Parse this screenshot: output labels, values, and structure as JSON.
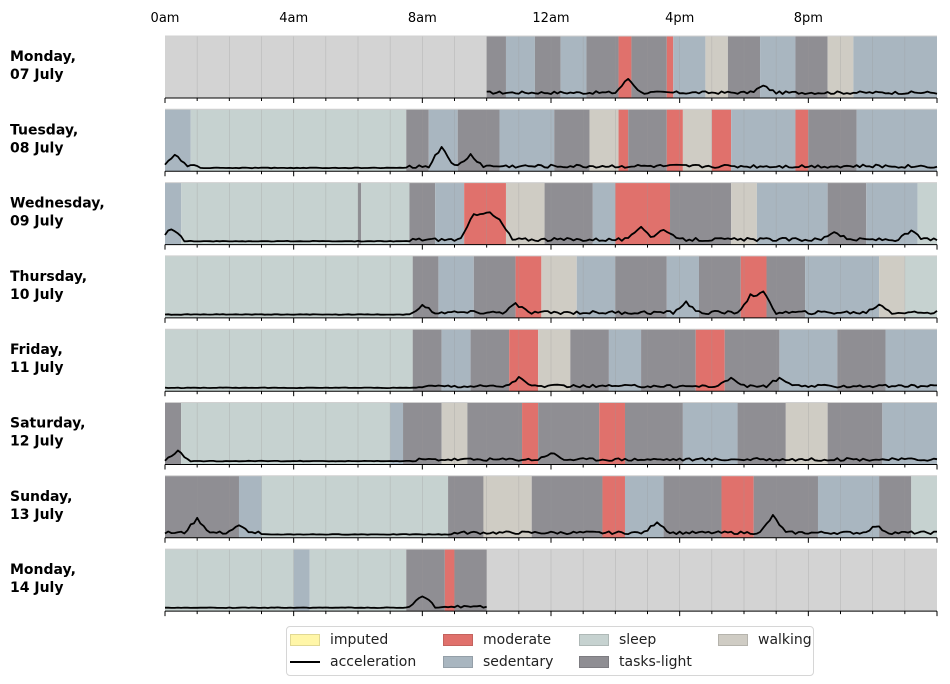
{
  "chart_data": {
    "type": "area",
    "x_ticks": [
      "0am",
      "4am",
      "8am",
      "12am",
      "4pm",
      "8pm"
    ],
    "x_tick_hours": [
      0,
      4,
      8,
      12,
      16,
      20
    ],
    "xlim_hours": [
      0,
      24
    ],
    "colors": {
      "imputed": "#fff6a8",
      "moderate": "#e0716c",
      "sedentary": "#a9b6c0",
      "sleep": "#c6d2d0",
      "tasks-light": "#8f8e93",
      "walking": "#cfccc4",
      "nodata": "#d3d3d3"
    },
    "legend": [
      {
        "key": "imputed",
        "label": "imputed",
        "kind": "patch"
      },
      {
        "key": "acceleration",
        "label": "acceleration",
        "kind": "line"
      },
      {
        "key": "moderate",
        "label": "moderate",
        "kind": "patch"
      },
      {
        "key": "sedentary",
        "label": "sedentary",
        "kind": "patch"
      },
      {
        "key": "sleep",
        "label": "sleep",
        "kind": "patch"
      },
      {
        "key": "tasks-light",
        "label": "tasks-light",
        "kind": "patch"
      },
      {
        "key": "walking",
        "label": "walking",
        "kind": "patch"
      }
    ],
    "days": [
      {
        "line1": "Monday,",
        "line2": "07 July",
        "segments": [
          {
            "s": 0,
            "e": 10,
            "c": "nodata"
          },
          {
            "s": 10,
            "e": 10.6,
            "c": "tasks-light"
          },
          {
            "s": 10.6,
            "e": 11.5,
            "c": "sedentary"
          },
          {
            "s": 11.5,
            "e": 12.3,
            "c": "tasks-light"
          },
          {
            "s": 12.3,
            "e": 13.1,
            "c": "sedentary"
          },
          {
            "s": 13.1,
            "e": 14.1,
            "c": "tasks-light"
          },
          {
            "s": 14.1,
            "e": 14.5,
            "c": "moderate"
          },
          {
            "s": 14.5,
            "e": 15.6,
            "c": "tasks-light"
          },
          {
            "s": 15.6,
            "e": 15.8,
            "c": "moderate"
          },
          {
            "s": 15.8,
            "e": 16.8,
            "c": "sedentary"
          },
          {
            "s": 16.8,
            "e": 17.5,
            "c": "walking"
          },
          {
            "s": 17.5,
            "e": 18.5,
            "c": "tasks-light"
          },
          {
            "s": 18.5,
            "e": 19.6,
            "c": "sedentary"
          },
          {
            "s": 19.6,
            "e": 20.6,
            "c": "tasks-light"
          },
          {
            "s": 20.6,
            "e": 21.4,
            "c": "walking"
          },
          {
            "s": 21.4,
            "e": 24,
            "c": "sedentary"
          }
        ],
        "accel": {
          "start": 10,
          "end": 24,
          "base": 0.07,
          "amp": 0.1,
          "peaks": [
            [
              14.4,
              0.25
            ],
            [
              18.6,
              0.12
            ]
          ]
        }
      },
      {
        "line1": "Tuesday,",
        "line2": "08 July",
        "segments": [
          {
            "s": 0,
            "e": 0.8,
            "c": "sedentary"
          },
          {
            "s": 0.8,
            "e": 7.5,
            "c": "sleep"
          },
          {
            "s": 7.5,
            "e": 8.2,
            "c": "tasks-light"
          },
          {
            "s": 8.2,
            "e": 9.1,
            "c": "sedentary"
          },
          {
            "s": 9.1,
            "e": 10.4,
            "c": "tasks-light"
          },
          {
            "s": 10.4,
            "e": 12.1,
            "c": "sedentary"
          },
          {
            "s": 12.1,
            "e": 13.2,
            "c": "tasks-light"
          },
          {
            "s": 13.2,
            "e": 14.1,
            "c": "walking"
          },
          {
            "s": 14.1,
            "e": 14.4,
            "c": "moderate"
          },
          {
            "s": 14.4,
            "e": 15.6,
            "c": "tasks-light"
          },
          {
            "s": 15.6,
            "e": 16.1,
            "c": "moderate"
          },
          {
            "s": 16.1,
            "e": 17,
            "c": "walking"
          },
          {
            "s": 17,
            "e": 17.6,
            "c": "moderate"
          },
          {
            "s": 17.6,
            "e": 19.6,
            "c": "sedentary"
          },
          {
            "s": 19.6,
            "e": 20,
            "c": "moderate"
          },
          {
            "s": 20,
            "e": 21.5,
            "c": "tasks-light"
          },
          {
            "s": 21.5,
            "e": 24,
            "c": "sedentary"
          }
        ],
        "accel": {
          "start": 0,
          "end": 24,
          "base": 0.05,
          "amp": 0.12,
          "peaks": [
            [
              0.3,
              0.2
            ],
            [
              8.6,
              0.35
            ],
            [
              9.5,
              0.2
            ]
          ],
          "quiet": [
            1,
            7.5
          ]
        }
      },
      {
        "line1": "Wednesday,",
        "line2": "09 July",
        "segments": [
          {
            "s": 0,
            "e": 0.5,
            "c": "sedentary"
          },
          {
            "s": 0.5,
            "e": 6,
            "c": "sleep"
          },
          {
            "s": 6,
            "e": 6.1,
            "c": "tasks-light"
          },
          {
            "s": 6.1,
            "e": 7.6,
            "c": "sleep"
          },
          {
            "s": 7.6,
            "e": 8.4,
            "c": "tasks-light"
          },
          {
            "s": 8.4,
            "e": 9.3,
            "c": "sedentary"
          },
          {
            "s": 9.3,
            "e": 10.6,
            "c": "moderate"
          },
          {
            "s": 10.6,
            "e": 11.8,
            "c": "walking"
          },
          {
            "s": 11.8,
            "e": 13.3,
            "c": "tasks-light"
          },
          {
            "s": 13.3,
            "e": 14,
            "c": "sedentary"
          },
          {
            "s": 14,
            "e": 15.7,
            "c": "moderate"
          },
          {
            "s": 15.7,
            "e": 17.6,
            "c": "tasks-light"
          },
          {
            "s": 17.6,
            "e": 18.4,
            "c": "walking"
          },
          {
            "s": 18.4,
            "e": 20.6,
            "c": "sedentary"
          },
          {
            "s": 20.6,
            "e": 21.8,
            "c": "tasks-light"
          },
          {
            "s": 21.8,
            "e": 23.4,
            "c": "sedentary"
          },
          {
            "s": 23.4,
            "e": 24,
            "c": "sleep"
          }
        ],
        "accel": {
          "start": 0,
          "end": 24,
          "base": 0.05,
          "amp": 0.12,
          "peaks": [
            [
              0.2,
              0.18
            ],
            [
              9.6,
              0.45
            ],
            [
              10,
              0.5
            ],
            [
              10.4,
              0.35
            ],
            [
              14.8,
              0.25
            ],
            [
              15.5,
              0.2
            ],
            [
              20.8,
              0.15
            ],
            [
              23.2,
              0.15
            ]
          ],
          "quiet": [
            0.6,
            7.6
          ]
        }
      },
      {
        "line1": "Thursday,",
        "line2": "10 July",
        "segments": [
          {
            "s": 0,
            "e": 7.7,
            "c": "sleep"
          },
          {
            "s": 7.7,
            "e": 8.5,
            "c": "tasks-light"
          },
          {
            "s": 8.5,
            "e": 9.6,
            "c": "sedentary"
          },
          {
            "s": 9.6,
            "e": 10.9,
            "c": "tasks-light"
          },
          {
            "s": 10.9,
            "e": 11.7,
            "c": "moderate"
          },
          {
            "s": 11.7,
            "e": 12.8,
            "c": "walking"
          },
          {
            "s": 12.8,
            "e": 14,
            "c": "sedentary"
          },
          {
            "s": 14,
            "e": 15.6,
            "c": "tasks-light"
          },
          {
            "s": 15.6,
            "e": 16.6,
            "c": "sedentary"
          },
          {
            "s": 16.6,
            "e": 17.9,
            "c": "tasks-light"
          },
          {
            "s": 17.9,
            "e": 18.7,
            "c": "moderate"
          },
          {
            "s": 18.7,
            "e": 19.9,
            "c": "tasks-light"
          },
          {
            "s": 19.9,
            "e": 22.2,
            "c": "sedentary"
          },
          {
            "s": 22.2,
            "e": 23,
            "c": "walking"
          },
          {
            "s": 23,
            "e": 24,
            "c": "sleep"
          }
        ],
        "accel": {
          "start": 0,
          "end": 24,
          "base": 0.06,
          "amp": 0.12,
          "peaks": [
            [
              8,
              0.12
            ],
            [
              10.9,
              0.15
            ],
            [
              16.2,
              0.18
            ],
            [
              18.2,
              0.3
            ],
            [
              18.6,
              0.35
            ],
            [
              22.2,
              0.15
            ]
          ],
          "quiet": [
            0,
            7.8
          ]
        }
      },
      {
        "line1": "Friday,",
        "line2": "11 July",
        "segments": [
          {
            "s": 0,
            "e": 7.7,
            "c": "sleep"
          },
          {
            "s": 7.7,
            "e": 8.6,
            "c": "tasks-light"
          },
          {
            "s": 8.6,
            "e": 9.5,
            "c": "sedentary"
          },
          {
            "s": 9.5,
            "e": 10.7,
            "c": "tasks-light"
          },
          {
            "s": 10.7,
            "e": 11.6,
            "c": "moderate"
          },
          {
            "s": 11.6,
            "e": 12.6,
            "c": "walking"
          },
          {
            "s": 12.6,
            "e": 13.8,
            "c": "tasks-light"
          },
          {
            "s": 13.8,
            "e": 14.8,
            "c": "sedentary"
          },
          {
            "s": 14.8,
            "e": 16.5,
            "c": "tasks-light"
          },
          {
            "s": 16.5,
            "e": 17.4,
            "c": "moderate"
          },
          {
            "s": 17.4,
            "e": 19.1,
            "c": "tasks-light"
          },
          {
            "s": 19.1,
            "e": 20.9,
            "c": "sedentary"
          },
          {
            "s": 20.9,
            "e": 22.4,
            "c": "tasks-light"
          },
          {
            "s": 22.4,
            "e": 24,
            "c": "sedentary"
          }
        ],
        "accel": {
          "start": 0,
          "end": 24,
          "base": 0.06,
          "amp": 0.1,
          "peaks": [
            [
              11,
              0.15
            ],
            [
              17.6,
              0.15
            ],
            [
              19.1,
              0.15
            ]
          ],
          "quiet": [
            0,
            7.8
          ]
        }
      },
      {
        "line1": "Saturday,",
        "line2": "12 July",
        "segments": [
          {
            "s": 0,
            "e": 0.5,
            "c": "tasks-light"
          },
          {
            "s": 0.5,
            "e": 7,
            "c": "sleep"
          },
          {
            "s": 7,
            "e": 7.4,
            "c": "sedentary"
          },
          {
            "s": 7.4,
            "e": 8.6,
            "c": "tasks-light"
          },
          {
            "s": 8.6,
            "e": 9.4,
            "c": "walking"
          },
          {
            "s": 9.4,
            "e": 11.1,
            "c": "tasks-light"
          },
          {
            "s": 11.1,
            "e": 11.6,
            "c": "moderate"
          },
          {
            "s": 11.6,
            "e": 13.5,
            "c": "tasks-light"
          },
          {
            "s": 13.5,
            "e": 14.3,
            "c": "moderate"
          },
          {
            "s": 14.3,
            "e": 16.1,
            "c": "tasks-light"
          },
          {
            "s": 16.1,
            "e": 17.8,
            "c": "sedentary"
          },
          {
            "s": 17.8,
            "e": 19.3,
            "c": "tasks-light"
          },
          {
            "s": 19.3,
            "e": 20.6,
            "c": "walking"
          },
          {
            "s": 20.6,
            "e": 22.3,
            "c": "tasks-light"
          },
          {
            "s": 22.3,
            "e": 24,
            "c": "sedentary"
          }
        ],
        "accel": {
          "start": 0,
          "end": 24,
          "base": 0.06,
          "amp": 0.1,
          "peaks": [
            [
              0.4,
              0.15
            ],
            [
              12,
              0.12
            ]
          ],
          "quiet": [
            0.6,
            7.8
          ]
        }
      },
      {
        "line1": "Sunday,",
        "line2": "13 July",
        "segments": [
          {
            "s": 0,
            "e": 2.3,
            "c": "tasks-light"
          },
          {
            "s": 2.3,
            "e": 3,
            "c": "sedentary"
          },
          {
            "s": 3,
            "e": 8.8,
            "c": "sleep"
          },
          {
            "s": 8.8,
            "e": 9.9,
            "c": "tasks-light"
          },
          {
            "s": 9.9,
            "e": 11.4,
            "c": "walking"
          },
          {
            "s": 11.4,
            "e": 13.6,
            "c": "tasks-light"
          },
          {
            "s": 13.6,
            "e": 14.3,
            "c": "moderate"
          },
          {
            "s": 14.3,
            "e": 15.5,
            "c": "sedentary"
          },
          {
            "s": 15.5,
            "e": 17.3,
            "c": "tasks-light"
          },
          {
            "s": 17.3,
            "e": 18.3,
            "c": "moderate"
          },
          {
            "s": 18.3,
            "e": 20.3,
            "c": "tasks-light"
          },
          {
            "s": 20.3,
            "e": 22.2,
            "c": "sedentary"
          },
          {
            "s": 22.2,
            "e": 23.2,
            "c": "tasks-light"
          },
          {
            "s": 23.2,
            "e": 24,
            "c": "sleep"
          }
        ],
        "accel": {
          "start": 0,
          "end": 24,
          "base": 0.06,
          "amp": 0.1,
          "peaks": [
            [
              1,
              0.25
            ],
            [
              2.3,
              0.12
            ],
            [
              15.3,
              0.2
            ],
            [
              18.9,
              0.3
            ],
            [
              22.1,
              0.12
            ]
          ],
          "quiet": [
            3,
            8.9
          ]
        }
      },
      {
        "line1": "Monday,",
        "line2": "14 July",
        "segments": [
          {
            "s": 0,
            "e": 4,
            "c": "sleep"
          },
          {
            "s": 4,
            "e": 4.5,
            "c": "sedentary"
          },
          {
            "s": 4.5,
            "e": 7.5,
            "c": "sleep"
          },
          {
            "s": 7.5,
            "e": 8.7,
            "c": "tasks-light"
          },
          {
            "s": 8.7,
            "e": 9,
            "c": "moderate"
          },
          {
            "s": 9,
            "e": 10,
            "c": "tasks-light"
          },
          {
            "s": 10,
            "e": 24,
            "c": "nodata"
          }
        ],
        "accel": {
          "start": 0,
          "end": 10,
          "base": 0.05,
          "amp": 0.08,
          "peaks": [
            [
              8,
              0.2
            ]
          ],
          "quiet": [
            0,
            7.5
          ]
        }
      }
    ]
  }
}
